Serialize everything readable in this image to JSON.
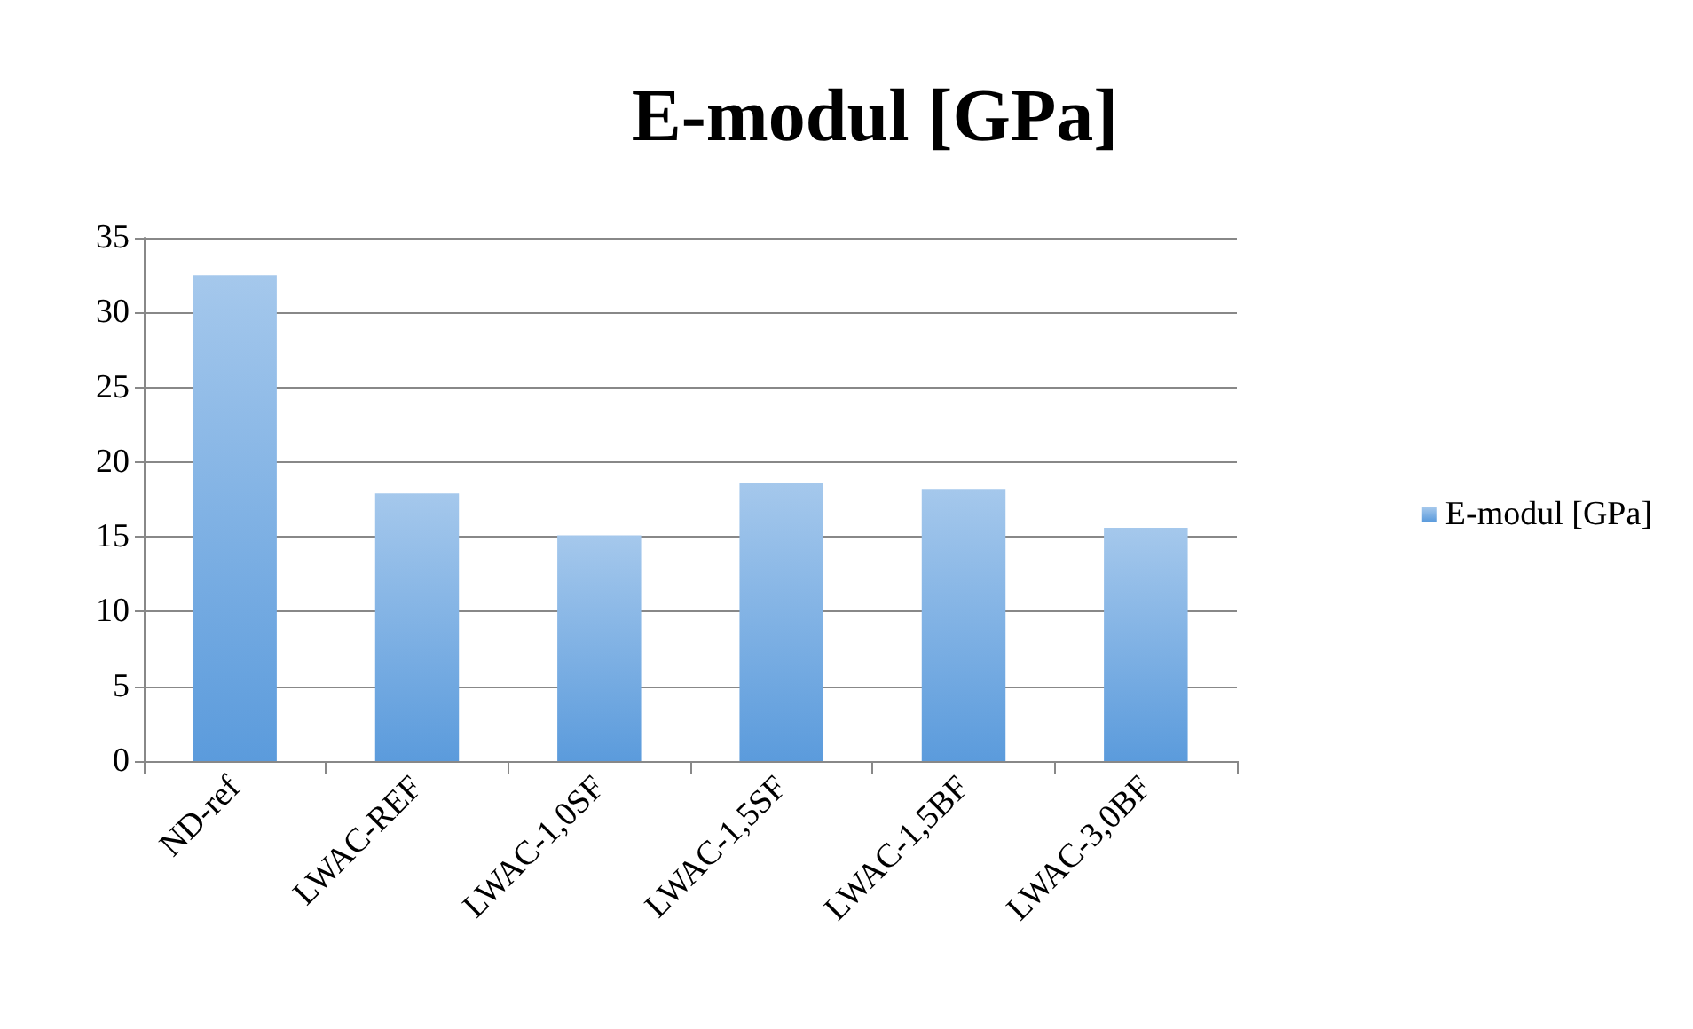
{
  "chart_data": {
    "type": "bar",
    "title": "E-modul [GPa]",
    "categories": [
      "ND-ref",
      "LWAC-REF",
      "LWAC-1,0SF",
      "LWAC-1,5SF",
      "LWAC-1,5BF",
      "LWAC-3,0BF"
    ],
    "series": [
      {
        "name": "E-modul [GPa]",
        "color": "#5b9bdc",
        "values": [
          32.5,
          17.9,
          15.1,
          18.6,
          18.2,
          15.6
        ]
      }
    ],
    "ylim": [
      0,
      35
    ],
    "yticks": [
      0,
      5,
      10,
      15,
      20,
      25,
      30,
      35
    ],
    "grid": "y",
    "legend": "right"
  }
}
